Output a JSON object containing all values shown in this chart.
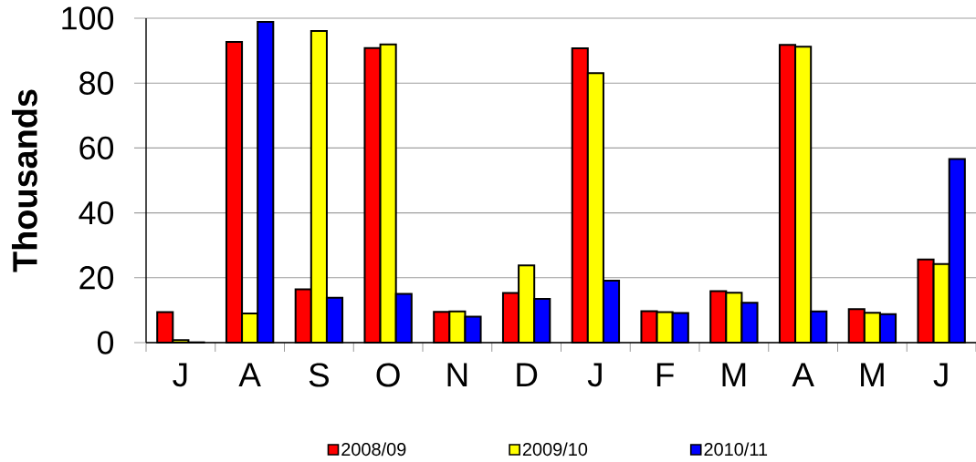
{
  "chart_data": {
    "type": "bar",
    "ylabel": "Thousands",
    "categories": [
      "J",
      "A",
      "S",
      "O",
      "N",
      "D",
      "J",
      "F",
      "M",
      "A",
      "M",
      "J"
    ],
    "series": [
      {
        "name": "2008/09",
        "color": "#ff0000",
        "values": [
          9.4,
          92.7,
          16.4,
          90.8,
          9.5,
          15.3,
          90.7,
          9.7,
          15.9,
          91.8,
          10.3,
          25.6
        ]
      },
      {
        "name": "2009/10",
        "color": "#ffff00",
        "values": [
          0.8,
          9.0,
          96.1,
          91.9,
          9.6,
          23.8,
          83.1,
          9.4,
          15.4,
          91.2,
          9.2,
          24.2
        ]
      },
      {
        "name": "2010/11",
        "color": "#0000ff",
        "values": [
          0.1,
          98.9,
          13.8,
          15.0,
          8.0,
          13.5,
          19.1,
          9.1,
          12.3,
          9.6,
          8.8,
          56.6
        ]
      }
    ],
    "ylim": [
      0,
      100
    ],
    "yticks": [
      0,
      20,
      40,
      60,
      80,
      100
    ],
    "grid": "y",
    "legend": "bottom"
  }
}
